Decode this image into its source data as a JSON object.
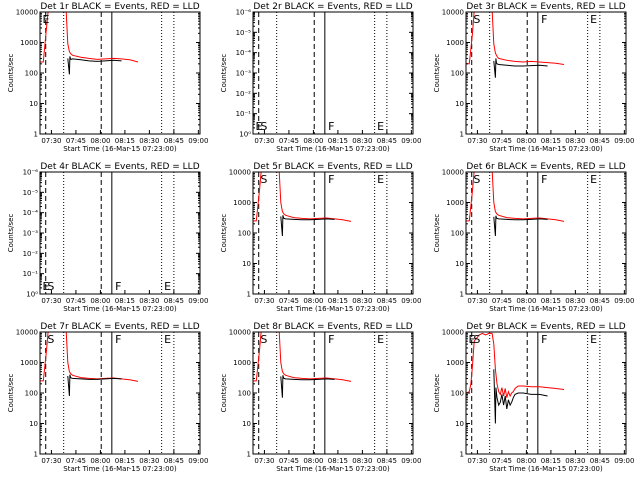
{
  "chart_data": [
    {
      "type": "line",
      "title": "Det 1r BLACK = Events, RED = LLD",
      "empty": false,
      "ylabel": "Counts/sec",
      "xlabel": "Start Time (16-Mar-15 07:23:00)",
      "ylim": [
        1,
        10000
      ],
      "yscale": "log",
      "yticks": [
        "1",
        "10",
        "100",
        "1000",
        "10000"
      ],
      "xticks": [
        "07:30",
        "07:45",
        "08:00",
        "08:15",
        "08:30",
        "08:45",
        "09:00"
      ],
      "markers": [
        "E",
        "",
        "",
        ""
      ],
      "series": [
        {
          "name": "LLD",
          "color": "#ff0000",
          "x": [
            0,
            2,
            4,
            5,
            6,
            7,
            8,
            10,
            12,
            14,
            15,
            16,
            17,
            18,
            19,
            20,
            25,
            30,
            35,
            40,
            45,
            50,
            55,
            60
          ],
          "y": [
            230,
            230,
            3000,
            11000,
            12000,
            12000,
            12000,
            12000,
            12000,
            12000,
            12000,
            12000,
            900,
            500,
            420,
            380,
            330,
            300,
            280,
            290,
            300,
            290,
            270,
            230
          ]
        },
        {
          "name": "Events",
          "color": "#000000",
          "x": [
            17,
            18,
            18.3,
            18.6,
            19,
            20,
            25,
            30,
            35,
            40,
            45,
            50
          ],
          "y": [
            300,
            90,
            350,
            300,
            280,
            290,
            270,
            250,
            240,
            250,
            260,
            250
          ]
        }
      ]
    },
    {
      "type": "line",
      "title": "Det 2r BLACK = Events, RED = LLD",
      "empty": true,
      "ylabel": "Counts/sec",
      "xlabel": "Start Time (16-Mar-15 07:23:00)",
      "ylim": [
        1,
        1e-06
      ],
      "yscale": "log",
      "yticks": [
        "10⁰",
        "10⁻¹",
        "10⁻²",
        "10⁻³",
        "10⁻⁴",
        "10⁻⁵",
        "10⁻⁶"
      ],
      "xticks": [
        "07:30",
        "07:45",
        "08:00",
        "08:15",
        "08:30",
        "08:45",
        "09:00"
      ],
      "markers": [
        "E",
        "S",
        "F",
        "E"
      ],
      "series": []
    },
    {
      "type": "line",
      "title": "Det 3r BLACK = Events, RED = LLD",
      "empty": false,
      "ylabel": "Counts/sec",
      "xlabel": "Start Time (16-Mar-15 07:23:00)",
      "ylim": [
        1,
        10000
      ],
      "yscale": "log",
      "yticks": [
        "1",
        "10",
        "100",
        "1000",
        "10000"
      ],
      "xticks": [
        "07:30",
        "07:45",
        "08:00",
        "08:15",
        "08:30",
        "08:45",
        "09:00"
      ],
      "markers": [
        "",
        "S",
        "F",
        "E"
      ],
      "series": [
        {
          "name": "LLD",
          "color": "#ff0000",
          "x": [
            0,
            2,
            4,
            5,
            6,
            8,
            10,
            12,
            14,
            15,
            16,
            17,
            18,
            19,
            20,
            25,
            30,
            35,
            40,
            45,
            50,
            55,
            60
          ],
          "y": [
            200,
            200,
            2000,
            11000,
            12000,
            12000,
            12000,
            12000,
            12000,
            12000,
            12000,
            900,
            450,
            350,
            300,
            260,
            240,
            230,
            240,
            230,
            220,
            210,
            190
          ]
        },
        {
          "name": "Events",
          "color": "#000000",
          "x": [
            17,
            18,
            18.3,
            18.6,
            19,
            20,
            25,
            30,
            35,
            40,
            45,
            50
          ],
          "y": [
            250,
            70,
            300,
            220,
            200,
            190,
            180,
            170,
            170,
            175,
            180,
            170
          ]
        }
      ]
    },
    {
      "type": "line",
      "title": "Det 4r BLACK = Events, RED = LLD",
      "empty": true,
      "ylabel": "Counts/sec",
      "xlabel": "Start Time (16-Mar-15 07:23:00)",
      "ylim": [
        1,
        1e-06
      ],
      "yscale": "log",
      "yticks": [
        "10⁰",
        "10⁻¹",
        "10⁻²",
        "10⁻³",
        "10⁻⁴",
        "10⁻⁵",
        "10⁻⁶"
      ],
      "xticks": [
        "07:30",
        "07:45",
        "08:00",
        "08:15",
        "08:30",
        "08:45",
        "09:00"
      ],
      "markers": [
        "E",
        "S",
        "F",
        "E"
      ],
      "series": []
    },
    {
      "type": "line",
      "title": "Det 5r BLACK = Events, RED = LLD",
      "empty": false,
      "ylabel": "Counts/sec",
      "xlabel": "Start Time (16-Mar-15 07:23:00)",
      "ylim": [
        1,
        10000
      ],
      "yscale": "log",
      "yticks": [
        "1",
        "10",
        "100",
        "1000",
        "10000"
      ],
      "xticks": [
        "07:30",
        "07:45",
        "08:00",
        "08:15",
        "08:30",
        "08:45",
        "09:00"
      ],
      "markers": [
        "",
        "S",
        "F",
        "E"
      ],
      "series": [
        {
          "name": "LLD",
          "color": "#ff0000",
          "x": [
            0,
            2,
            4,
            5,
            6,
            8,
            10,
            12,
            14,
            15,
            16,
            17,
            18,
            19,
            20,
            25,
            30,
            35,
            40,
            45,
            50,
            55,
            60
          ],
          "y": [
            250,
            250,
            2500,
            11000,
            12000,
            12000,
            12000,
            12000,
            12000,
            12000,
            12000,
            1000,
            500,
            420,
            380,
            320,
            300,
            290,
            300,
            310,
            290,
            270,
            240
          ]
        },
        {
          "name": "Events",
          "color": "#000000",
          "x": [
            17,
            18,
            18.3,
            18.6,
            19,
            20,
            25,
            30,
            35,
            40,
            45,
            50
          ],
          "y": [
            350,
            80,
            380,
            330,
            300,
            290,
            280,
            270,
            270,
            280,
            290,
            280
          ]
        }
      ]
    },
    {
      "type": "line",
      "title": "Det 6r BLACK = Events, RED = LLD",
      "empty": false,
      "ylabel": "Counts/sec",
      "xlabel": "Start Time (16-Mar-15 07:23:00)",
      "ylim": [
        1,
        10000
      ],
      "yscale": "log",
      "yticks": [
        "1",
        "10",
        "100",
        "1000",
        "10000"
      ],
      "xticks": [
        "07:30",
        "07:45",
        "08:00",
        "08:15",
        "08:30",
        "08:45",
        "09:00"
      ],
      "markers": [
        "",
        "S",
        "F",
        "E"
      ],
      "series": [
        {
          "name": "LLD",
          "color": "#ff0000",
          "x": [
            0,
            2,
            4,
            5,
            6,
            8,
            10,
            12,
            14,
            15,
            16,
            17,
            18,
            19,
            20,
            25,
            30,
            35,
            40,
            45,
            50,
            55,
            60
          ],
          "y": [
            250,
            250,
            2500,
            11000,
            12000,
            12000,
            12000,
            12000,
            12000,
            12000,
            12000,
            1000,
            500,
            420,
            380,
            320,
            300,
            290,
            300,
            310,
            290,
            270,
            240
          ]
        },
        {
          "name": "Events",
          "color": "#000000",
          "x": [
            17,
            18,
            18.3,
            18.6,
            19,
            20,
            25,
            30,
            35,
            40,
            45,
            50
          ],
          "y": [
            340,
            80,
            370,
            320,
            300,
            290,
            280,
            270,
            270,
            280,
            290,
            280
          ]
        }
      ]
    },
    {
      "type": "line",
      "title": "Det 7r BLACK = Events, RED = LLD",
      "empty": false,
      "ylabel": "Counts/sec",
      "xlabel": "Start Time (16-Mar-15 07:23:00)",
      "ylim": [
        1,
        10000
      ],
      "yscale": "log",
      "yticks": [
        "1",
        "10",
        "100",
        "1000",
        "10000"
      ],
      "xticks": [
        "07:30",
        "07:45",
        "08:00",
        "08:15",
        "08:30",
        "08:45",
        "09:00"
      ],
      "markers": [
        "",
        "S",
        "F",
        "E"
      ],
      "series": [
        {
          "name": "LLD",
          "color": "#ff0000",
          "x": [
            0,
            2,
            4,
            5,
            6,
            8,
            10,
            12,
            14,
            15,
            16,
            17,
            18,
            19,
            20,
            25,
            30,
            35,
            40,
            45,
            50,
            55,
            60
          ],
          "y": [
            250,
            250,
            2500,
            11000,
            12000,
            12000,
            12000,
            12000,
            12000,
            12000,
            12000,
            1000,
            500,
            420,
            380,
            320,
            300,
            290,
            300,
            310,
            290,
            270,
            240
          ]
        },
        {
          "name": "Events",
          "color": "#000000",
          "x": [
            17,
            18,
            18.3,
            18.6,
            19,
            20,
            25,
            30,
            35,
            40,
            45,
            50
          ],
          "y": [
            360,
            80,
            400,
            340,
            310,
            300,
            290,
            280,
            280,
            290,
            300,
            290
          ]
        }
      ]
    },
    {
      "type": "line",
      "title": "Det 8r BLACK = Events, RED = LLD",
      "empty": false,
      "ylabel": "Counts/sec",
      "xlabel": "Start Time (16-Mar-15 07:23:00)",
      "ylim": [
        1,
        10000
      ],
      "yscale": "log",
      "yticks": [
        "1",
        "10",
        "100",
        "1000",
        "10000"
      ],
      "xticks": [
        "07:30",
        "07:45",
        "08:00",
        "08:15",
        "08:30",
        "08:45",
        "09:00"
      ],
      "markers": [
        "",
        "S",
        "F",
        "E"
      ],
      "series": [
        {
          "name": "LLD",
          "color": "#ff0000",
          "x": [
            0,
            2,
            4,
            5,
            6,
            8,
            10,
            12,
            14,
            15,
            16,
            17,
            18,
            19,
            20,
            25,
            30,
            35,
            40,
            45,
            50,
            55,
            60
          ],
          "y": [
            250,
            250,
            2500,
            11000,
            12000,
            12000,
            12000,
            12000,
            12000,
            12000,
            12000,
            1000,
            500,
            420,
            380,
            320,
            300,
            290,
            300,
            310,
            290,
            270,
            240
          ]
        },
        {
          "name": "Events",
          "color": "#000000",
          "x": [
            17,
            18,
            18.3,
            18.6,
            19,
            20,
            25,
            30,
            35,
            40,
            45,
            50
          ],
          "y": [
            350,
            70,
            380,
            330,
            300,
            290,
            280,
            270,
            270,
            280,
            290,
            280
          ]
        }
      ]
    },
    {
      "type": "line",
      "title": "Det 9r BLACK = Events, RED = LLD",
      "empty": false,
      "ylabel": "Counts/sec",
      "xlabel": "Start Time (16-Mar-15 07:23:00)",
      "ylim": [
        1,
        10000
      ],
      "yscale": "log",
      "yticks": [
        "1",
        "10",
        "100",
        "1000",
        "10000"
      ],
      "xticks": [
        "07:30",
        "07:45",
        "08:00",
        "08:15",
        "08:30",
        "08:45",
        "09:00"
      ],
      "markers": [
        "E",
        "S",
        "F",
        "E"
      ],
      "series": [
        {
          "name": "LLD",
          "color": "#ff0000",
          "x": [
            0,
            2,
            3,
            4,
            5,
            8,
            10,
            12,
            14,
            15,
            16,
            17,
            18,
            19,
            20,
            21,
            22,
            23,
            24,
            25,
            26,
            27,
            28,
            29,
            30,
            32,
            35,
            40,
            45,
            50,
            55,
            60
          ],
          "y": [
            100,
            110,
            200,
            800,
            5000,
            8000,
            9000,
            8000,
            9000,
            9000,
            9000,
            4000,
            600,
            200,
            110,
            90,
            150,
            80,
            140,
            70,
            110,
            80,
            100,
            110,
            140,
            170,
            170,
            160,
            160,
            150,
            140,
            130
          ]
        },
        {
          "name": "Events",
          "color": "#000000",
          "x": [
            17,
            18,
            18.3,
            19,
            20,
            21,
            22,
            23,
            24,
            25,
            26,
            27,
            28,
            29,
            30,
            32,
            35,
            40,
            45,
            50
          ],
          "y": [
            600,
            10,
            150,
            70,
            40,
            50,
            90,
            40,
            80,
            30,
            60,
            40,
            50,
            70,
            90,
            100,
            100,
            90,
            90,
            80
          ]
        }
      ]
    }
  ]
}
